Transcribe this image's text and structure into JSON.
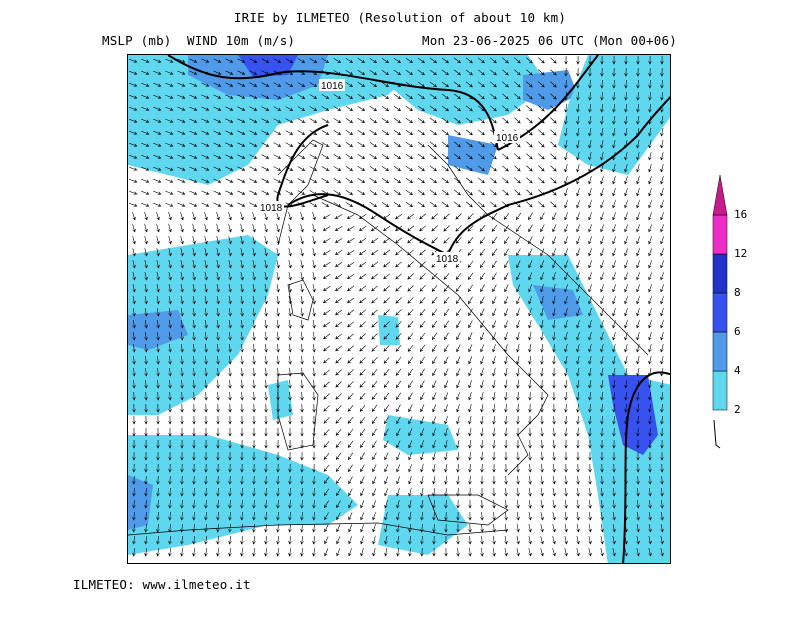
{
  "header": {
    "title": "IRIE by ILMETEO (Resolution of about 10 km)",
    "left_subtitle": "MSLP (mb)  WIND 10m (m/s)",
    "right_subtitle": "Mon 23-06-2025 06 UTC (Mon 00+06)"
  },
  "footer": {
    "credit": "ILMETEO: www.ilmeteo.it"
  },
  "map": {
    "isobar_labels": [
      "1016",
      "1016",
      "1018",
      "1018"
    ],
    "arrow_icon": "wind-arrow-icon"
  },
  "legend": {
    "ticks": [
      "2",
      "4",
      "6",
      "8",
      "12",
      "16"
    ],
    "colors": [
      "#5fd8ef",
      "#4f9be9",
      "#3852f0",
      "#2233c7",
      "#ef2ec8",
      "#c71a8c"
    ]
  }
}
